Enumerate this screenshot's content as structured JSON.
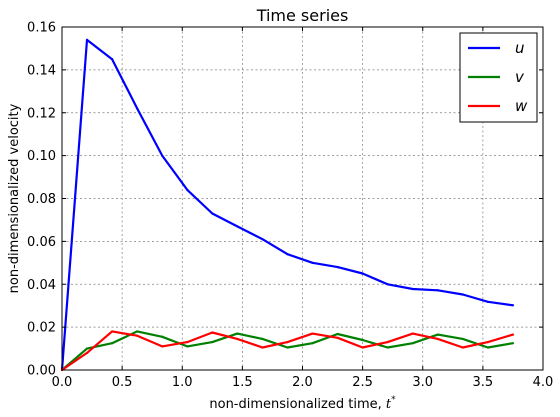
{
  "chart_data": {
    "type": "line",
    "title": "Time series",
    "xlabel": "non-dimensionalized time, ",
    "xlabel_symbol": "t",
    "xlabel_superscript": "*",
    "ylabel": "non-dimensionalized velocity",
    "xlim": [
      0.0,
      4.0
    ],
    "ylim": [
      0.0,
      0.16
    ],
    "xticks": [
      "0.0",
      "0.5",
      "1.0",
      "1.5",
      "2.0",
      "2.5",
      "3.0",
      "3.5",
      "4.0"
    ],
    "yticks": [
      "0.00",
      "0.02",
      "0.04",
      "0.06",
      "0.08",
      "0.10",
      "0.12",
      "0.14",
      "0.16"
    ],
    "grid": true,
    "legend_position": "top-right",
    "x": [
      0.0,
      0.208,
      0.417,
      0.625,
      0.833,
      1.042,
      1.25,
      1.458,
      1.667,
      1.875,
      2.083,
      2.292,
      2.5,
      2.708,
      2.917,
      3.125,
      3.333,
      3.542,
      3.75
    ],
    "series": [
      {
        "name": "u",
        "color": "#0000ff",
        "values": [
          0.0,
          0.154,
          0.145,
          0.122,
          0.1,
          0.084,
          0.073,
          0.067,
          0.061,
          0.054,
          0.05,
          0.048,
          0.045,
          0.04,
          0.0378,
          0.0372,
          0.0352,
          0.0318,
          0.0302
        ]
      },
      {
        "name": "v",
        "color": "#008000",
        "values": [
          0.0,
          0.01,
          0.0125,
          0.018,
          0.0155,
          0.011,
          0.013,
          0.017,
          0.0145,
          0.0105,
          0.0125,
          0.0168,
          0.014,
          0.0105,
          0.0125,
          0.0165,
          0.0145,
          0.0105,
          0.0125
        ]
      },
      {
        "name": "w",
        "color": "#ff0000",
        "values": [
          0.0,
          0.008,
          0.018,
          0.016,
          0.011,
          0.013,
          0.0175,
          0.0145,
          0.0105,
          0.013,
          0.017,
          0.015,
          0.0105,
          0.013,
          0.017,
          0.0145,
          0.0105,
          0.013,
          0.0165
        ]
      }
    ]
  }
}
